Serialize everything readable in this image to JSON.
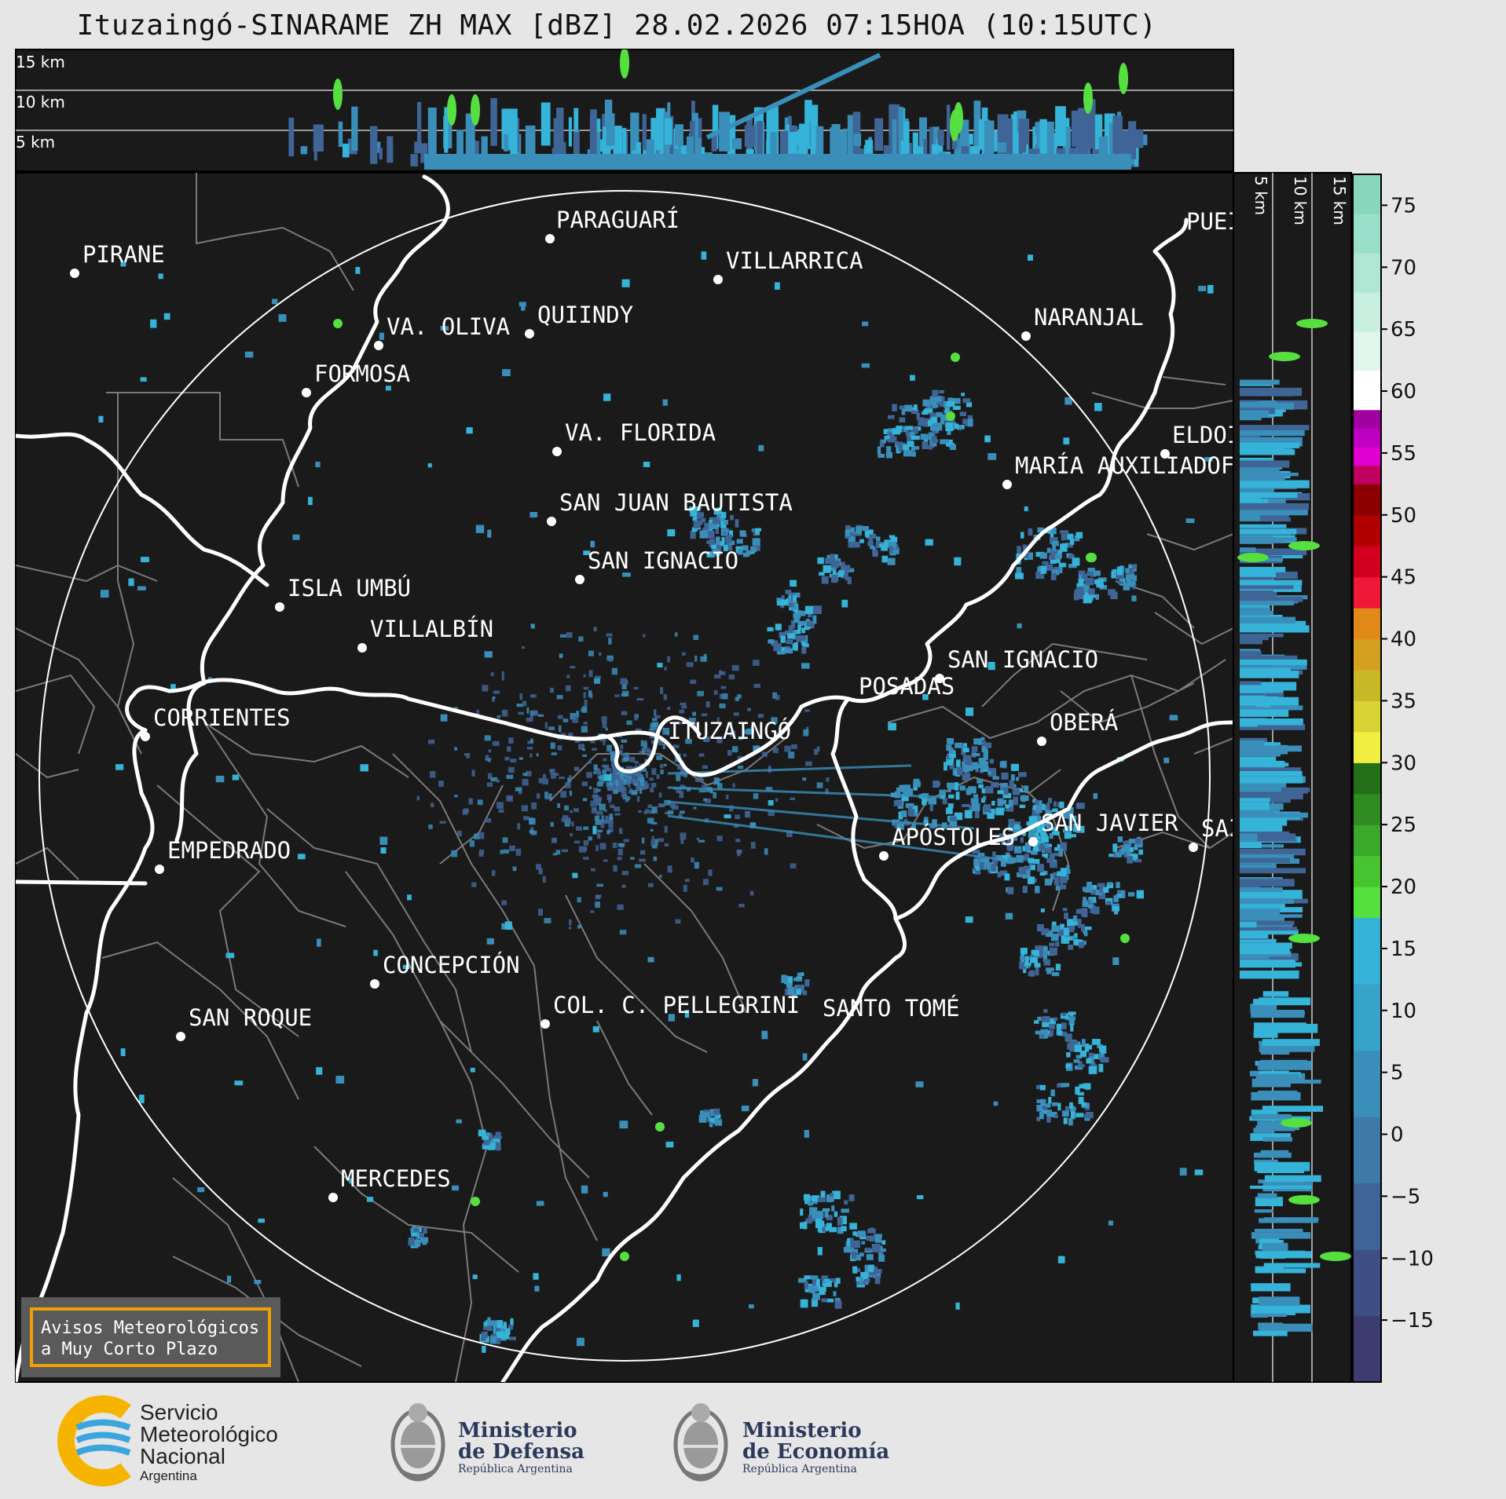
{
  "title": "Ituzaingó-SINARAME ZH MAX [dBZ] 28.02.2026 07:15HOA (10:15UTC)",
  "top_panel": {
    "height_labels": [
      "15 km",
      "10 km",
      "5 km"
    ]
  },
  "side_panel": {
    "height_labels": [
      "5 km",
      "10 km",
      "15 km"
    ]
  },
  "colorbar": {
    "ticks": [
      "75",
      "70",
      "65",
      "60",
      "55",
      "50",
      "45",
      "40",
      "35",
      "30",
      "25",
      "20",
      "15",
      "10",
      "5",
      "0",
      "−5",
      "−10",
      "−15"
    ],
    "tick_values": [
      75,
      70,
      65,
      60,
      55,
      50,
      45,
      40,
      35,
      30,
      25,
      20,
      15,
      10,
      5,
      0,
      -5,
      -10,
      -15
    ],
    "range": [
      -20,
      77.5
    ],
    "bands": [
      {
        "from": -20,
        "to": 17.5,
        "colors": [
          "#3c3c70",
          "#3f4f84",
          "#3f6596",
          "#3d7aa8",
          "#3a8fba",
          "#37a3c9",
          "#35b3d8"
        ]
      },
      {
        "from": 17.5,
        "to": 30,
        "colors": [
          "#55e040",
          "#47c430",
          "#3aa828",
          "#2e8c20",
          "#237018"
        ]
      },
      {
        "from": 30,
        "to": 42.5,
        "colors": [
          "#f0ee40",
          "#d8d232",
          "#c8b828",
          "#d4a020",
          "#e08818"
        ]
      },
      {
        "from": 42.5,
        "to": 52.5,
        "colors": [
          "#f01838",
          "#d40020",
          "#b00000",
          "#8c0000"
        ]
      },
      {
        "from": 52.5,
        "to": 58.5,
        "colors": [
          "#c00060",
          "#e000d0",
          "#c000c0",
          "#a000a0"
        ]
      },
      {
        "from": 58.5,
        "to": 77.5,
        "colors": [
          "#ffffff",
          "#e0f5ec",
          "#c8eee0",
          "#b0e6d4",
          "#98dec8",
          "#88d6bc"
        ]
      }
    ]
  },
  "cities": [
    {
      "name": "PIRANE"
    },
    {
      "name": "PARAGUARÍ"
    },
    {
      "name": "VILLARRICA"
    },
    {
      "name": "QUIINDY"
    },
    {
      "name": "VA. OLIVA"
    },
    {
      "name": "FORMOSA"
    },
    {
      "name": "NARANJAL"
    },
    {
      "name": "PUEI"
    },
    {
      "name": "VA. FLORIDA"
    },
    {
      "name": "ELDOI"
    },
    {
      "name": "MARÍA AUXILIADOF"
    },
    {
      "name": "SAN JUAN BAUTISTA"
    },
    {
      "name": "SAN IGNACIO"
    },
    {
      "name": "ISLA UMBÚ"
    },
    {
      "name": "VILLALBÍN"
    },
    {
      "name": "SAN IGNACIO"
    },
    {
      "name": "POSADAS"
    },
    {
      "name": "CORRIENTES"
    },
    {
      "name": "ITUZAINGÓ"
    },
    {
      "name": "OBERÁ"
    },
    {
      "name": "APÓSTOLES"
    },
    {
      "name": "SAN JAVIER"
    },
    {
      "name": "SAI"
    },
    {
      "name": "EMPEDRADO"
    },
    {
      "name": "CONCEPCIÓN"
    },
    {
      "name": "COL. C. PELLEGRINI"
    },
    {
      "name": "SANTO TOMÉ"
    },
    {
      "name": "SAN ROQUE"
    },
    {
      "name": "MERCEDES"
    }
  ],
  "notice": {
    "line1": "Avisos Meteorológicos",
    "line2": "a Muy Corto Plazo"
  },
  "logos": {
    "smn": {
      "line1": "Servicio",
      "line2": "Meteorológico",
      "line3": "Nacional",
      "line4": "Argentina"
    },
    "defensa": {
      "line1": "Ministerio",
      "line2": "de Defensa",
      "line3": "República Argentina"
    },
    "economia": {
      "line1": "Ministerio",
      "line2": "de Economía",
      "line3": "República Argentina"
    }
  },
  "colors": {
    "panel_bg": "#1a1a1a",
    "page_bg": "#e6e6e6",
    "echo_light": "#35b3d8",
    "echo_mid": "#3a8fba",
    "echo_dark": "#3f6596",
    "echo_green": "#55e040",
    "accent_orange": "#f0a000",
    "smn_blue": "#3aa6dd",
    "smn_yellow": "#f6b400"
  }
}
